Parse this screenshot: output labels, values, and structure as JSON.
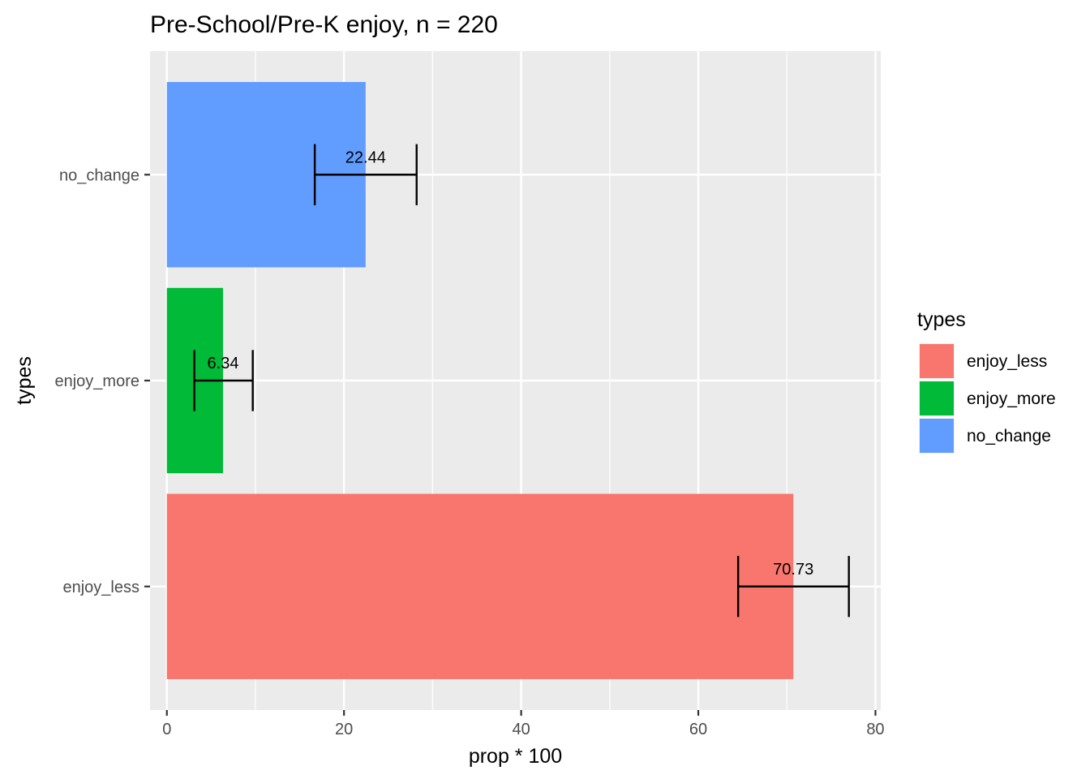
{
  "chart_data": {
    "type": "bar",
    "orientation": "horizontal",
    "title": "Pre-School/Pre-K enjoy, n = 220",
    "xlabel": "prop * 100",
    "ylabel": "types",
    "categories": [
      "enjoy_less",
      "enjoy_more",
      "no_change"
    ],
    "values": [
      70.73,
      6.34,
      22.44
    ],
    "data_labels": [
      "70.73",
      "6.34",
      "22.44"
    ],
    "error_low": [
      64.5,
      3.1,
      16.7
    ],
    "error_high": [
      77.0,
      9.7,
      28.2
    ],
    "colors": [
      "#F8766D",
      "#00BA38",
      "#619CFF"
    ],
    "xlim": [
      -1.9,
      80.6
    ],
    "x_ticks": [
      0,
      20,
      40,
      60,
      80
    ],
    "grid": true,
    "panel_background": "#EBEBEB",
    "legend": {
      "title": "types",
      "position": "right",
      "entries": [
        "enjoy_less",
        "enjoy_more",
        "no_change"
      ]
    }
  }
}
